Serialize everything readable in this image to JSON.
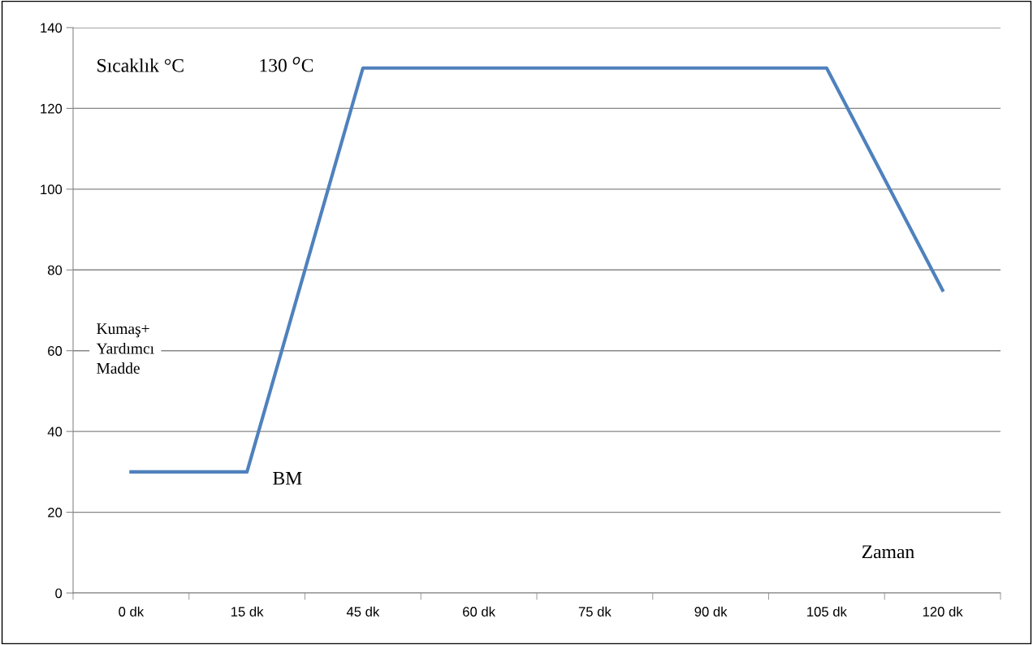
{
  "chart_data": {
    "type": "line",
    "categories": [
      "0 dk",
      "15 dk",
      "45 dk",
      "60 dk",
      "75 dk",
      "90 dk",
      "105 dk",
      "120 dk"
    ],
    "series": [
      {
        "color": "#4f81bd",
        "values": [
          30,
          30,
          130,
          130,
          130,
          130,
          130,
          75
        ]
      }
    ],
    "ylim": [
      0,
      140
    ],
    "yticks": [
      0,
      20,
      40,
      60,
      80,
      100,
      120,
      140
    ],
    "grid": "y",
    "marker": "none",
    "line_style": "solid",
    "annotations": [
      "Sıcaklık °C",
      "130 $^{o}$C",
      "Kumaş+\nYardımcı\nMadde",
      "BM",
      "Zaman"
    ]
  }
}
